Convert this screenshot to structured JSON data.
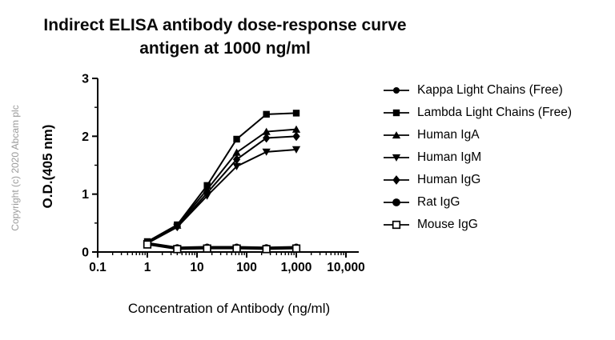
{
  "copyright": "Copyright (c) 2020 Abcam plc",
  "chart_data": {
    "type": "line",
    "title": "Indirect ELISA antibody dose-response curve antigen at 1000 ng/ml",
    "title_line1": "Indirect ELISA antibody dose-response curve",
    "title_line2": "antigen at 1000 ng/ml",
    "xlabel": "Concentration of Antibody (ng/ml)",
    "ylabel": "O.D.(405 nm)",
    "x_scale": "log",
    "xlim": [
      0.1,
      10000
    ],
    "ylim": [
      0,
      3
    ],
    "x_tick_values": [
      0.1,
      1,
      10,
      100,
      1000,
      10000
    ],
    "x_tick_labels": [
      "0.1",
      "1",
      "10",
      "100",
      "1,000",
      "10,000"
    ],
    "y_tick_values": [
      0,
      1,
      2,
      3
    ],
    "y_tick_labels": [
      "0",
      "1",
      "2",
      "3"
    ],
    "grid": false,
    "legend_position": "right",
    "line_color": "#000000",
    "x": [
      1,
      4,
      16,
      63,
      250,
      1000
    ],
    "series": [
      {
        "name": "Kappa Light Chains (Free)",
        "marker": "circle",
        "values": [
          0.16,
          0.08,
          0.09,
          0.09,
          0.08,
          0.09
        ]
      },
      {
        "name": "Lambda Light Chains (Free)",
        "marker": "square",
        "values": [
          0.18,
          0.47,
          1.15,
          1.95,
          2.38,
          2.4
        ]
      },
      {
        "name": "Human IgA",
        "marker": "triangle-up",
        "values": [
          0.16,
          0.46,
          1.08,
          1.72,
          2.08,
          2.12
        ]
      },
      {
        "name": "Human IgM",
        "marker": "triangle-down",
        "values": [
          0.15,
          0.43,
          0.97,
          1.48,
          1.73,
          1.77
        ]
      },
      {
        "name": "Human IgG",
        "marker": "diamond",
        "values": [
          0.15,
          0.44,
          1.02,
          1.6,
          1.97,
          2.0
        ]
      },
      {
        "name": "Rat IgG",
        "marker": "circle-large",
        "values": [
          0.14,
          0.06,
          0.07,
          0.07,
          0.06,
          0.07
        ]
      },
      {
        "name": "Mouse IgG",
        "marker": "square-open",
        "values": [
          0.13,
          0.05,
          0.06,
          0.06,
          0.05,
          0.06
        ]
      }
    ]
  }
}
